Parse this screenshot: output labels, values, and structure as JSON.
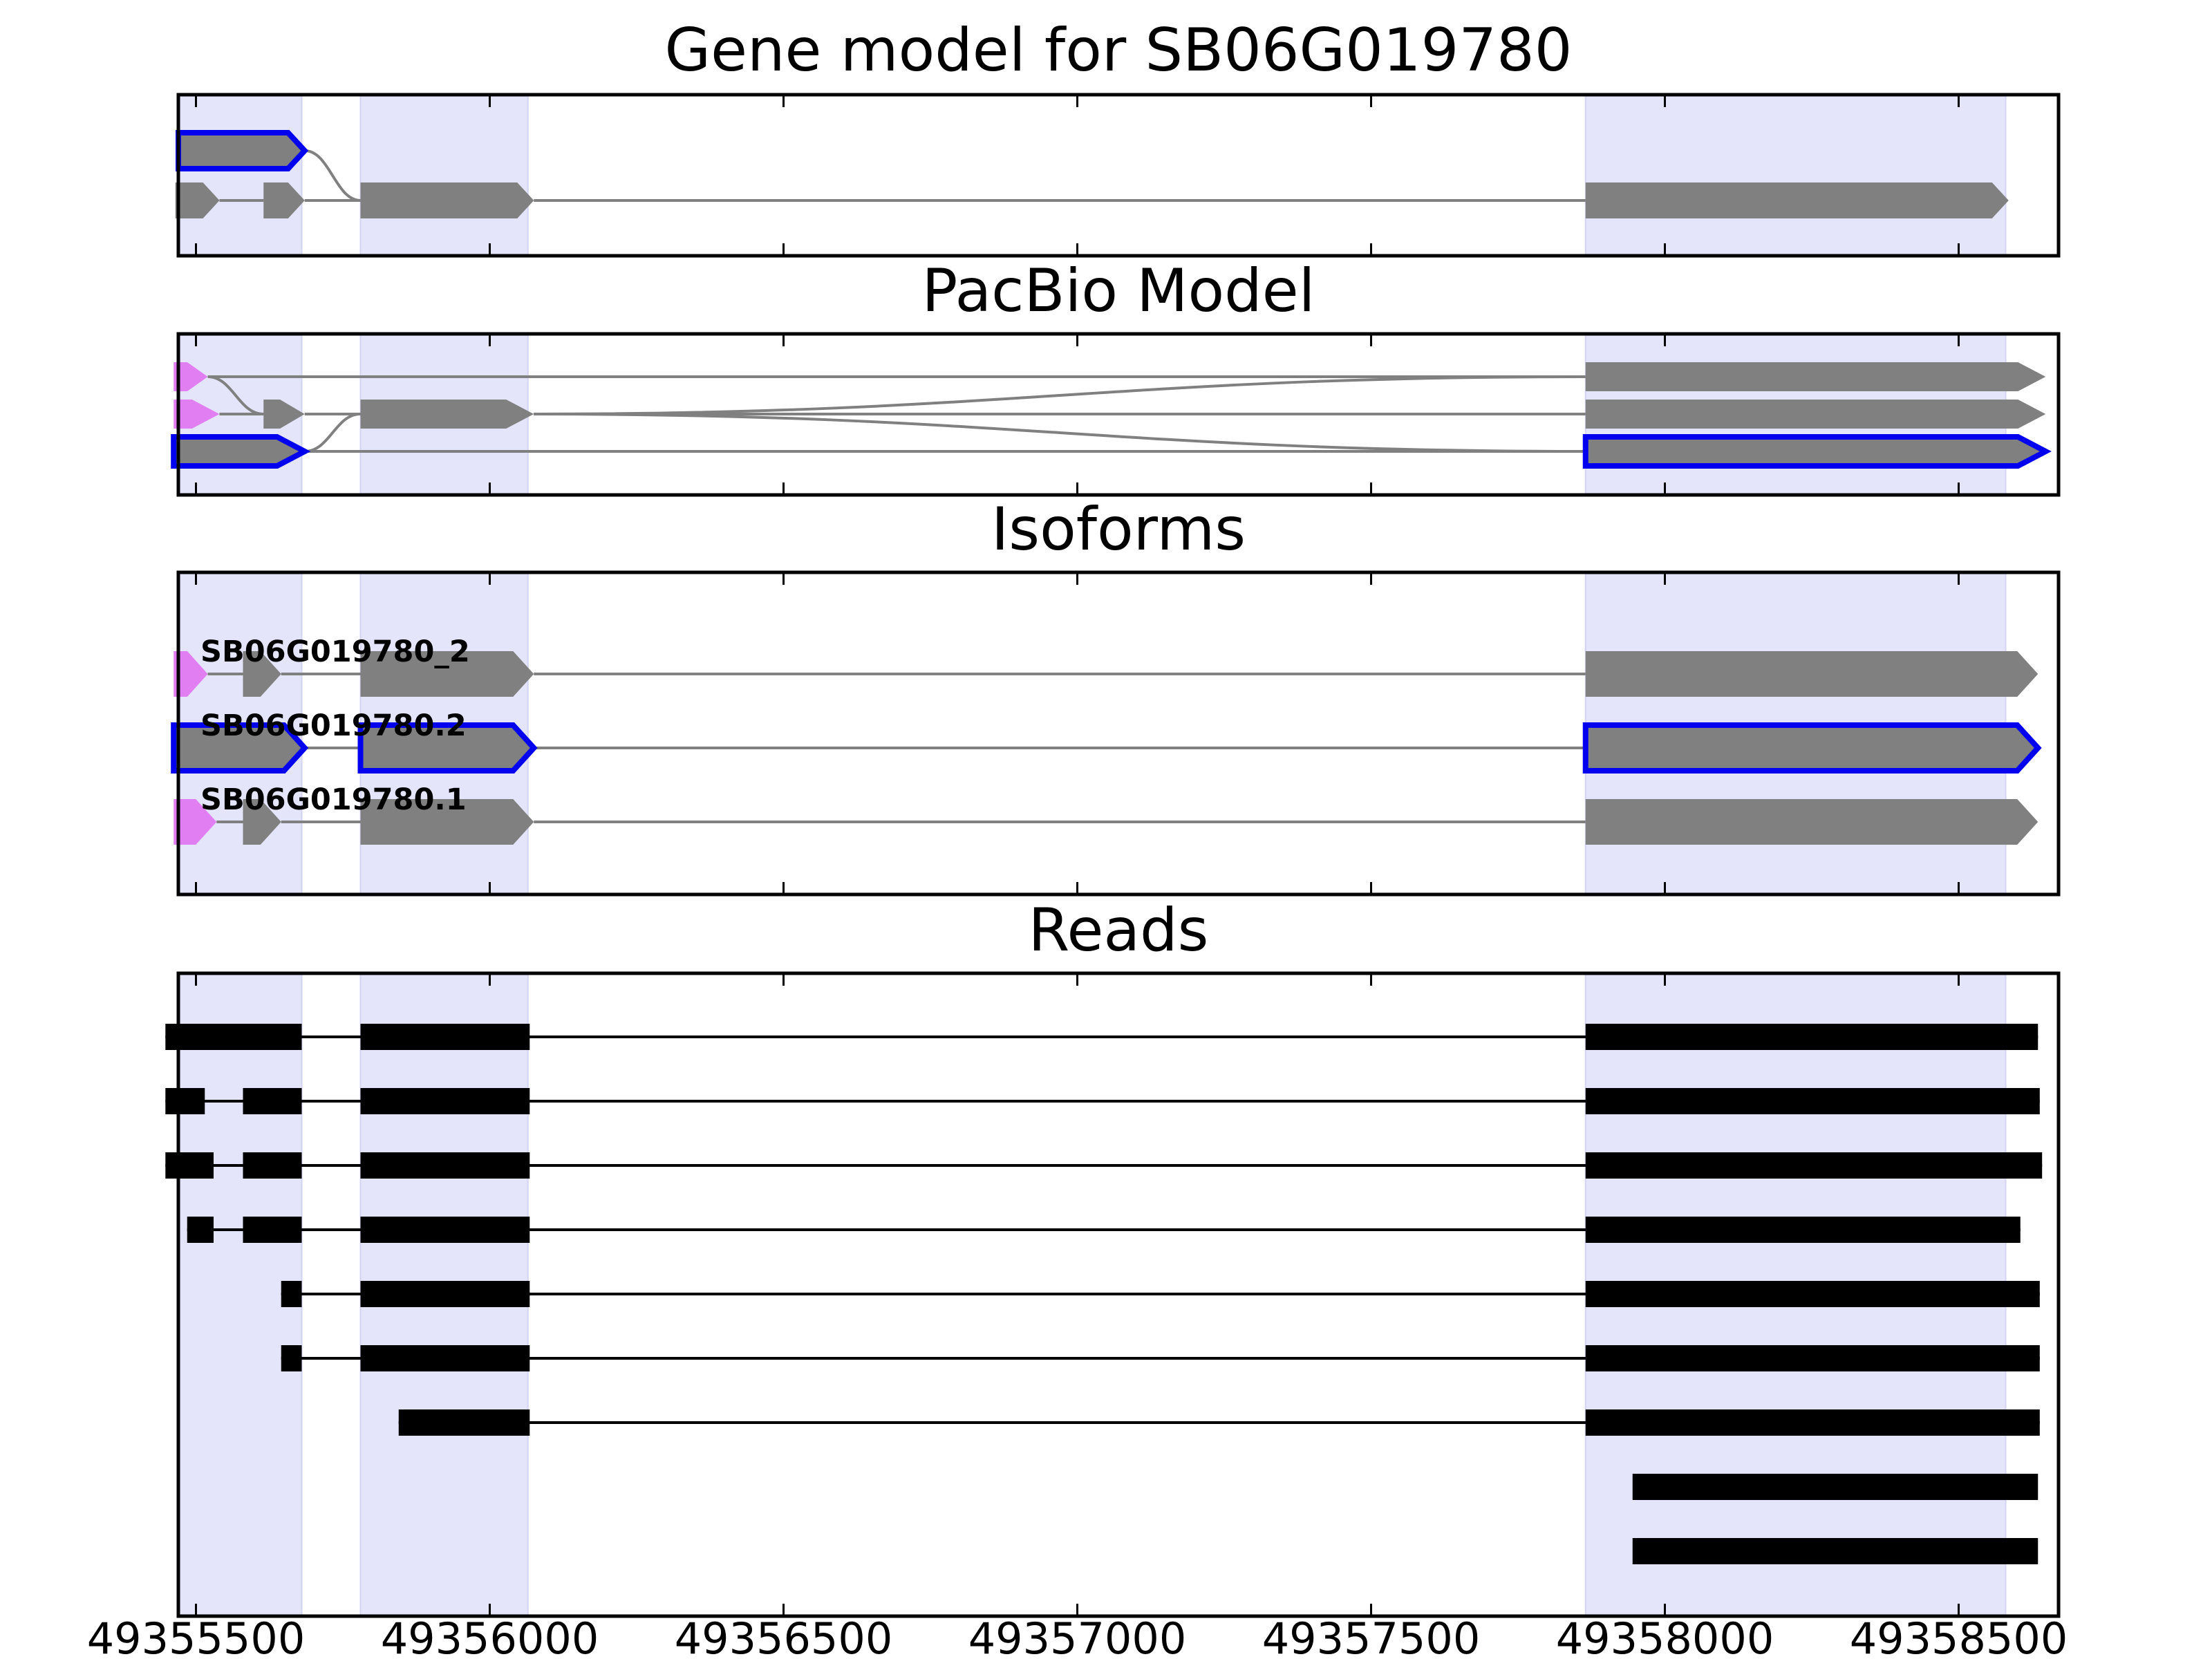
{
  "panels": [
    {
      "key": "gene",
      "title": "Gene model for SB06G019780",
      "highlight": [
        [
          49355470,
          49355680
        ],
        [
          49355780,
          49356065
        ],
        [
          49357865,
          49358580
        ]
      ],
      "tracks": [
        {
          "exons": [
            [
              49355470,
              49355685
            ]
          ],
          "outline": true
        },
        {
          "exons": [
            [
              49355465,
              49355540
            ],
            [
              49355615,
              49355685
            ],
            [
              49355780,
              49356075
            ],
            [
              49357865,
              49358585
            ]
          ]
        }
      ],
      "links": [
        [
          0,
          1,
          49355685,
          49355780
        ]
      ]
    },
    {
      "key": "pacbio",
      "title": "PacBio Model",
      "highlight": [
        [
          49355470,
          49355680
        ],
        [
          49355780,
          49356065
        ],
        [
          49357865,
          49358580
        ]
      ],
      "tracks": [
        {
          "exons": [
            [
              49355462,
              49355520
            ],
            [
              49357865,
              49358648
            ]
          ],
          "pink": [
            0
          ]
        },
        {
          "exons": [
            [
              49355462,
              49355540
            ],
            [
              49355615,
              49355685
            ],
            [
              49355780,
              49356075
            ],
            [
              49357865,
              49358648
            ]
          ],
          "pink": [
            0
          ]
        },
        {
          "exons": [
            [
              49355462,
              49355685
            ],
            [
              49357865,
              49358648
            ]
          ],
          "outline": true
        }
      ],
      "links": [
        [
          0,
          1,
          49355520,
          49355615
        ],
        [
          2,
          1,
          49355685,
          49355780
        ],
        [
          1,
          0,
          49356075,
          49357865
        ],
        [
          1,
          2,
          49356075,
          49357865
        ]
      ]
    },
    {
      "key": "isoforms",
      "title": "Isoforms",
      "highlight": [
        [
          49355470,
          49355680
        ],
        [
          49355780,
          49356065
        ],
        [
          49357865,
          49358580
        ]
      ],
      "tracks": [
        {
          "label": "SB06G019780_2",
          "exons": [
            [
              49355462,
              49355520
            ],
            [
              49355580,
              49355645
            ],
            [
              49355780,
              49356075
            ],
            [
              49357865,
              49358635
            ]
          ],
          "pink": [
            0
          ]
        },
        {
          "label": "SB06G019780.2",
          "exons": [
            [
              49355462,
              49355685
            ],
            [
              49355780,
              49356075
            ],
            [
              49357865,
              49358635
            ]
          ],
          "outline": true
        },
        {
          "label": "SB06G019780.1",
          "exons": [
            [
              49355462,
              49355535
            ],
            [
              49355580,
              49355645
            ],
            [
              49355780,
              49356075
            ],
            [
              49357865,
              49358635
            ]
          ],
          "pink": [
            0
          ]
        }
      ]
    },
    {
      "key": "reads",
      "title": "Reads",
      "highlight": [
        [
          49355470,
          49355680
        ],
        [
          49355780,
          49356065
        ],
        [
          49357865,
          49358580
        ]
      ],
      "reads": [
        [
          [
            49355448,
            49355680
          ],
          [
            49355780,
            49356068
          ],
          [
            49357865,
            49358635
          ]
        ],
        [
          [
            49355448,
            49355515
          ],
          [
            49355580,
            49355680
          ],
          [
            49355780,
            49356068
          ],
          [
            49357865,
            49358638
          ]
        ],
        [
          [
            49355448,
            49355530
          ],
          [
            49355580,
            49355680
          ],
          [
            49355780,
            49356068
          ],
          [
            49357865,
            49358642
          ]
        ],
        [
          [
            49355485,
            49355530
          ],
          [
            49355580,
            49355680
          ],
          [
            49355780,
            49356068
          ],
          [
            49357865,
            49358605
          ]
        ],
        [
          [
            49355645,
            49355680
          ],
          [
            49355780,
            49356068
          ],
          [
            49357865,
            49358638
          ]
        ],
        [
          [
            49355645,
            49355680
          ],
          [
            49355780,
            49356068
          ],
          [
            49357865,
            49358638
          ]
        ],
        [
          [
            49355845,
            49356068
          ],
          [
            49357865,
            49358638
          ]
        ],
        [
          [
            49357945,
            49358635
          ]
        ],
        [
          [
            49357945,
            49358635
          ]
        ]
      ]
    }
  ],
  "axis": {
    "xlim": [
      49355470,
      49358670
    ],
    "ticks": [
      49355500,
      49356000,
      49356500,
      49357000,
      49357500,
      49358000,
      49358500
    ],
    "tick_labels": [
      "49355500",
      "49356000",
      "49356500",
      "49357000",
      "49357500",
      "49358000",
      "49358500"
    ]
  },
  "colors": {
    "highlight": "#e4e4fb",
    "exon": "#808080",
    "intron": "#808080",
    "outline": "#0000ee",
    "pink": "#e07ef2",
    "read": "#000000"
  }
}
